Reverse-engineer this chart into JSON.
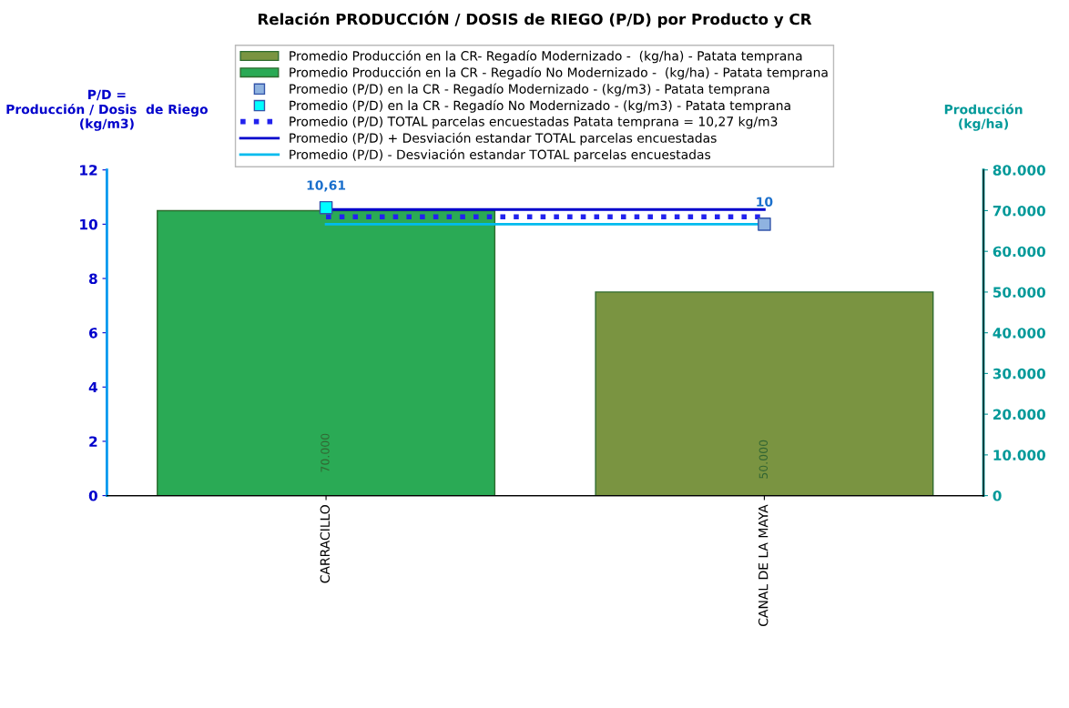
{
  "chart_data": {
    "type": "bar",
    "title": "Relación PRODUCCIÓN / DOSIS de RIEGO (P/D) por Producto y CR",
    "categories": [
      "CARRACILLO",
      "CANAL DE LA MAYA"
    ],
    "ylabel": "P/D =\nProducción / Dosis  de Riego\n(kg/m3)",
    "y2label": "Producción\n(kg/ha)",
    "ylim": [
      0,
      12
    ],
    "yticks": [
      0,
      2,
      4,
      6,
      8,
      10,
      12
    ],
    "y2lim": [
      0,
      80000
    ],
    "y2ticks": [
      {
        "value": 0,
        "label": "0"
      },
      {
        "value": 10000,
        "label": "10.000"
      },
      {
        "value": 20000,
        "label": "20.000"
      },
      {
        "value": 30000,
        "label": "30.000"
      },
      {
        "value": 40000,
        "label": "40.000"
      },
      {
        "value": 50000,
        "label": "50.000"
      },
      {
        "value": 60000,
        "label": "60.000"
      },
      {
        "value": 70000,
        "label": "70.000"
      },
      {
        "value": 80000,
        "label": "80.000"
      }
    ],
    "grid": false,
    "legend": "top",
    "series": [
      {
        "name": "Promedio Producción en la CR- Regadío Modernizado -  (kg/ha) - Patata temprana",
        "axis": "y2",
        "color": "#7a9441",
        "values": [
          null,
          50000
        ],
        "value_labels": [
          null,
          "50.000"
        ]
      },
      {
        "name": "Promedio Producción en la CR - Regadío No Modernizado -  (kg/ha) - Patata temprana",
        "axis": "y2",
        "color": "#2aaa55",
        "values": [
          70000,
          null
        ],
        "value_labels": [
          "70.000",
          null
        ]
      },
      {
        "name": "Promedio (P/D) en la CR - Regadío Modernizado - (kg/m3) - Patata temprana",
        "type": "scatter",
        "marker": "square",
        "color": "#8fb3e0",
        "values": [
          null,
          10
        ],
        "value_labels": [
          null,
          "10"
        ]
      },
      {
        "name": "Promedio (P/D) en la CR - Regadío No Modernizado - (kg/m3) - Patata temprana",
        "type": "scatter",
        "marker": "square",
        "color": "#00ffff",
        "values": [
          10.61,
          null
        ],
        "value_labels": [
          "10,61",
          null
        ]
      },
      {
        "name": "Promedio (P/D) TOTAL parcelas encuestadas Patata temprana = 10,27 kg/m3",
        "type": "line",
        "line_style": "dotted",
        "marker": "none",
        "color": "#2222ee",
        "values": [
          10.27,
          10.27
        ]
      },
      {
        "name": "Promedio (P/D) + Desviación estandar TOTAL parcelas encuestadas",
        "type": "line",
        "line_style": "solid",
        "marker": "none",
        "color": "#0000cc",
        "values": [
          10.54,
          10.54
        ]
      },
      {
        "name": "Promedio (P/D) - Desviación estandar TOTAL parcelas encuestadas",
        "type": "line",
        "line_style": "solid",
        "marker": "none",
        "color": "#00bbee",
        "values": [
          10.0,
          10.0
        ]
      }
    ]
  }
}
